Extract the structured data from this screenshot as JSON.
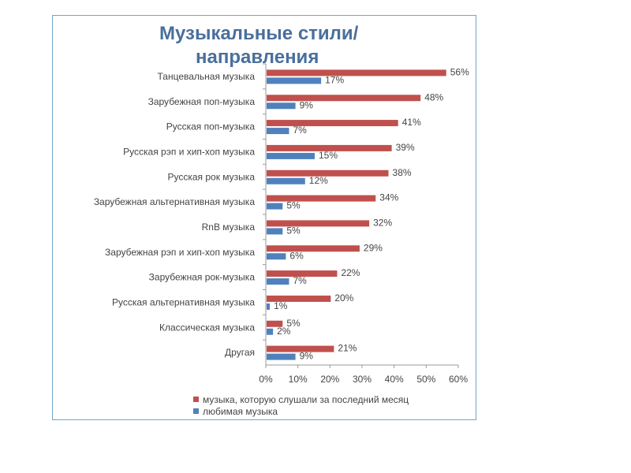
{
  "chart_data": {
    "type": "bar",
    "orientation": "horizontal",
    "title_line1": "Музыкальные стили/",
    "title_line2": "направления",
    "categories": [
      "Танцевальная  музыка",
      "Зарубежная поп-музыка",
      "Русская поп-музыка",
      "Русская рэп и хип-хоп музыка",
      "Русская рок музыка",
      "Зарубежная альтернативная  музыка",
      "RnB музыка",
      "Зарубежная рэп и  хип-хоп музыка",
      "Зарубежная рок-музыка",
      "Русская альтернативная  музыка",
      "Классическая музыка",
      "Другая"
    ],
    "series": [
      {
        "name": "музыка, которую слушали за последний месяц",
        "color": "#c0504d",
        "values": [
          56,
          48,
          41,
          39,
          38,
          34,
          32,
          29,
          22,
          20,
          5,
          21
        ],
        "labels": [
          "56%",
          "48%",
          "41%",
          "39%",
          "38%",
          "34%",
          "32%",
          "29%",
          "22%",
          "20%",
          "5%",
          "21%"
        ]
      },
      {
        "name": "любимая музыка",
        "color": "#4f81bd",
        "values": [
          17,
          9,
          7,
          15,
          12,
          5,
          5,
          6,
          7,
          1,
          2,
          9
        ],
        "labels": [
          "17%",
          "9%",
          "7%",
          "15%",
          "12%",
          "5%",
          "5%",
          "6%",
          "7%",
          "1%",
          "2%",
          "9%"
        ]
      }
    ],
    "xlim": [
      0,
      60
    ],
    "xticks": [
      0,
      10,
      20,
      30,
      40,
      50,
      60
    ],
    "xtick_labels": [
      "0%",
      "10%",
      "20%",
      "30%",
      "40%",
      "50%",
      "60%"
    ],
    "grid": false,
    "legend_position": "bottom"
  }
}
